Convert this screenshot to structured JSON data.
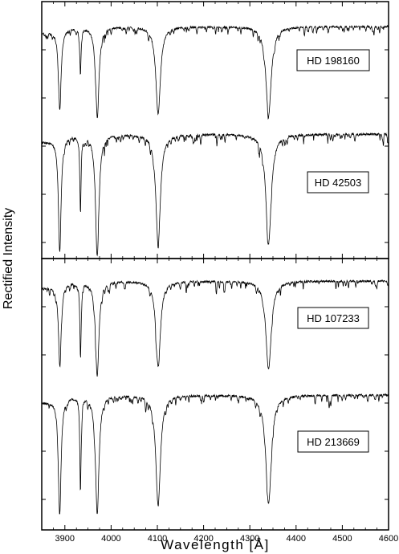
{
  "chart_data": {
    "type": "line",
    "xlabel": "Wavelength [Å]",
    "ylabel": "Rectified Intensity",
    "xlim": [
      3850,
      4600
    ],
    "x_ticks": [
      3900,
      4000,
      4100,
      4200,
      4300,
      4400,
      4500,
      4600
    ],
    "x_tick_labels": [
      "3900",
      "4000",
      "4100",
      "4200",
      "4300",
      "4400",
      "4500",
      "4600"
    ],
    "grid": false,
    "line_color": "#000000",
    "panels": [
      {
        "series": [
          {
            "name": "HD 198160",
            "absorption_lines": [
              {
                "wavelength": 3889,
                "min": 0.23
              },
              {
                "wavelength": 3933.7,
                "min": 0.55
              },
              {
                "wavelength": 3970,
                "min": 0.16
              },
              {
                "wavelength": 4101.7,
                "min": 0.16
              },
              {
                "wavelength": 4340.5,
                "min": 0.15
              }
            ]
          },
          {
            "name": "HD 42503",
            "absorption_lines": [
              {
                "wavelength": 3889,
                "min": 0.07
              },
              {
                "wavelength": 3933.7,
                "min": 0.37
              },
              {
                "wavelength": 3970,
                "min": 0.0
              },
              {
                "wavelength": 4101.7,
                "min": 0.1
              },
              {
                "wavelength": 4340.5,
                "min": 0.1
              }
            ]
          }
        ]
      },
      {
        "series": [
          {
            "name": "HD 107233",
            "absorption_lines": [
              {
                "wavelength": 3889,
                "min": 0.28
              },
              {
                "wavelength": 3933.7,
                "min": 0.36
              },
              {
                "wavelength": 3970,
                "min": 0.15
              },
              {
                "wavelength": 4101.7,
                "min": 0.23
              },
              {
                "wavelength": 4340.5,
                "min": 0.2
              }
            ]
          },
          {
            "name": "HD 213669",
            "absorption_lines": [
              {
                "wavelength": 3889,
                "min": 0.05
              },
              {
                "wavelength": 3933.7,
                "min": 0.2
              },
              {
                "wavelength": 3970,
                "min": 0.0
              },
              {
                "wavelength": 4101.7,
                "min": 0.07
              },
              {
                "wavelength": 4340.5,
                "min": 0.08
              }
            ]
          }
        ]
      }
    ]
  }
}
